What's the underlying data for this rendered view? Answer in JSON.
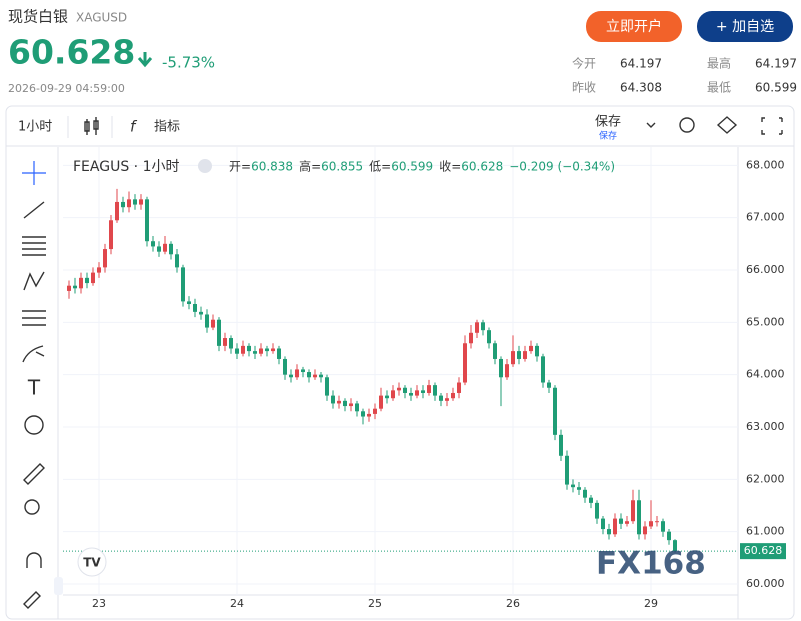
{
  "header": {
    "title": "现货白银",
    "symbol": "XAGUSD",
    "price": "60.628",
    "change": "-5.73%",
    "datetime": "2026-09-29 04:59:00",
    "buttons": [
      "立即开户",
      "+ 加自选"
    ],
    "stats": [
      {
        "label": "今开",
        "value": "64.197"
      },
      {
        "label": "最高",
        "value": "64.197"
      },
      {
        "label": "昨收",
        "value": "64.308"
      },
      {
        "label": "最低",
        "value": "60.599"
      }
    ]
  },
  "toolbar": {
    "interval": "1小时",
    "indicators": "指标",
    "save": "保存",
    "save_sub": "保存"
  },
  "chart_data": {
    "type": "candlestick",
    "legend_symbol": "FEAGUS · 1小时",
    "legend_labels": [
      "开=",
      "高=",
      "低=",
      "收="
    ],
    "change_label": "−0.209 (−0.34%)",
    "watermark": "FX168",
    "up_color": "#e0474c",
    "down_color": "#1f9d76",
    "categories": [
      null,
      null,
      null,
      null,
      null,
      "23",
      null,
      null,
      null,
      null,
      null,
      null,
      null,
      null,
      null,
      null,
      null,
      null,
      null,
      null,
      null,
      null,
      null,
      null,
      null,
      null,
      null,
      null,
      "24",
      null,
      null,
      null,
      null,
      null,
      null,
      null,
      null,
      null,
      null,
      null,
      null,
      null,
      null,
      null,
      null,
      null,
      null,
      null,
      null,
      null,
      null,
      "25",
      null,
      null,
      null,
      null,
      null,
      null,
      null,
      null,
      null,
      null,
      null,
      null,
      null,
      null,
      null,
      null,
      null,
      null,
      null,
      null,
      null,
      null,
      "26",
      null,
      null,
      null,
      null,
      null,
      null,
      null,
      null,
      null,
      null,
      null,
      null,
      null,
      null,
      null,
      null,
      null,
      null,
      null,
      null,
      null,
      null,
      "29",
      null,
      null,
      null,
      null
    ],
    "open": [
      65.6,
      65.7,
      65.65,
      65.85,
      65.75,
      65.95,
      66.05,
      66.4,
      66.95,
      67.3,
      67.2,
      67.35,
      67.25,
      67.35,
      66.55,
      66.45,
      66.35,
      66.5,
      66.3,
      66.05,
      65.4,
      65.35,
      65.2,
      65.15,
      64.9,
      65.05,
      64.55,
      64.7,
      64.5,
      64.4,
      64.55,
      64.45,
      64.4,
      64.5,
      64.45,
      64.5,
      64.3,
      64.0,
      63.95,
      64.1,
      64.05,
      63.95,
      64.0,
      63.95,
      63.6,
      63.45,
      63.5,
      63.4,
      63.45,
      63.3,
      63.2,
      63.25,
      63.35,
      63.6,
      63.55,
      63.7,
      63.75,
      63.65,
      63.6,
      63.7,
      63.65,
      63.8,
      63.6,
      63.5,
      63.55,
      63.65,
      63.85,
      64.6,
      64.8,
      65.0,
      64.85,
      64.6,
      64.3,
      63.95,
      64.2,
      64.45,
      64.3,
      64.45,
      64.55,
      64.35,
      63.85,
      63.75,
      62.85,
      62.45,
      61.9,
      61.85,
      61.8,
      61.65,
      61.55,
      61.25,
      61.05,
      60.95,
      61.25,
      61.15,
      61.2,
      61.6,
      60.95,
      61.1,
      61.2,
      61.2,
      61.0,
      60.838
    ],
    "high": [
      65.8,
      65.85,
      65.95,
      65.95,
      66.05,
      66.15,
      66.5,
      67.05,
      67.55,
      67.4,
      67.5,
      67.45,
      67.45,
      67.4,
      66.65,
      66.55,
      66.65,
      66.55,
      66.4,
      66.1,
      65.5,
      65.45,
      65.3,
      65.25,
      65.15,
      65.1,
      64.8,
      64.75,
      64.6,
      64.65,
      64.6,
      64.55,
      64.6,
      64.55,
      64.6,
      64.55,
      64.35,
      64.1,
      64.2,
      64.15,
      64.1,
      64.1,
      64.05,
      64.0,
      63.7,
      63.6,
      63.55,
      63.55,
      63.5,
      63.35,
      63.35,
      63.45,
      63.75,
      63.7,
      63.8,
      63.85,
      63.8,
      63.75,
      63.8,
      63.8,
      63.9,
      63.85,
      63.65,
      63.65,
      63.75,
      63.95,
      64.75,
      64.95,
      65.05,
      65.05,
      64.9,
      64.65,
      64.35,
      64.3,
      64.75,
      64.55,
      64.55,
      64.65,
      64.6,
      64.4,
      63.9,
      63.8,
      62.95,
      62.55,
      62.0,
      61.95,
      61.85,
      61.7,
      61.6,
      61.3,
      61.15,
      61.35,
      61.35,
      61.3,
      61.8,
      61.8,
      61.2,
      61.6,
      61.3,
      61.25,
      61.05,
      60.855
    ],
    "low": [
      65.45,
      65.55,
      65.55,
      65.65,
      65.7,
      65.85,
      65.95,
      66.3,
      66.9,
      67.1,
      67.1,
      67.15,
      67.15,
      66.45,
      66.35,
      66.25,
      66.3,
      66.2,
      65.95,
      65.3,
      65.25,
      65.1,
      65.05,
      64.8,
      64.85,
      64.45,
      64.45,
      64.4,
      64.3,
      64.35,
      64.35,
      64.3,
      64.35,
      64.35,
      64.4,
      64.2,
      63.9,
      63.85,
      63.9,
      63.95,
      63.85,
      63.9,
      63.85,
      63.5,
      63.35,
      63.35,
      63.3,
      63.3,
      63.2,
      63.05,
      63.1,
      63.15,
      63.3,
      63.45,
      63.5,
      63.6,
      63.55,
      63.5,
      63.55,
      63.55,
      63.6,
      63.5,
      63.4,
      63.4,
      63.5,
      63.55,
      63.8,
      64.5,
      64.7,
      64.75,
      64.5,
      64.2,
      63.4,
      63.9,
      64.15,
      64.2,
      64.25,
      64.4,
      64.25,
      63.75,
      63.65,
      62.75,
      62.35,
      61.8,
      61.75,
      61.7,
      61.55,
      61.45,
      61.15,
      60.95,
      60.85,
      60.9,
      61.05,
      61.1,
      61.15,
      60.85,
      60.85,
      61.05,
      61.1,
      60.9,
      60.75,
      60.599
    ],
    "close": [
      65.7,
      65.65,
      65.85,
      65.75,
      65.95,
      66.05,
      66.4,
      66.95,
      67.3,
      67.2,
      67.35,
      67.25,
      67.35,
      66.55,
      66.45,
      66.35,
      66.5,
      66.3,
      66.05,
      65.4,
      65.35,
      65.2,
      65.15,
      64.9,
      65.05,
      64.55,
      64.7,
      64.5,
      64.4,
      64.55,
      64.45,
      64.4,
      64.5,
      64.45,
      64.5,
      64.3,
      64.0,
      63.95,
      64.1,
      64.05,
      63.95,
      64.0,
      63.95,
      63.6,
      63.45,
      63.5,
      63.4,
      63.45,
      63.3,
      63.2,
      63.25,
      63.35,
      63.6,
      63.55,
      63.7,
      63.75,
      63.65,
      63.6,
      63.7,
      63.65,
      63.8,
      63.6,
      63.5,
      63.55,
      63.65,
      63.85,
      64.6,
      64.8,
      65.0,
      64.85,
      64.6,
      64.3,
      63.95,
      64.2,
      64.45,
      64.3,
      64.45,
      64.55,
      64.35,
      63.85,
      63.75,
      62.85,
      62.45,
      61.9,
      61.85,
      61.8,
      61.65,
      61.55,
      61.25,
      61.05,
      60.95,
      61.25,
      61.15,
      61.2,
      61.6,
      60.95,
      61.1,
      61.2,
      61.2,
      61.0,
      60.838,
      60.628
    ],
    "ylim": [
      59.79,
      68.35
    ],
    "yticks": [
      {
        "value": 60,
        "label": "60.000"
      },
      {
        "value": 61,
        "label": "61.000"
      },
      {
        "value": 62,
        "label": "62.000"
      },
      {
        "value": 63,
        "label": "63.000"
      },
      {
        "value": 64,
        "label": "64.000"
      },
      {
        "value": 65,
        "label": "65.000"
      },
      {
        "value": 66,
        "label": "66.000"
      },
      {
        "value": 67,
        "label": "67.000"
      },
      {
        "value": 68,
        "label": "68.000"
      }
    ],
    "grid": true
  }
}
